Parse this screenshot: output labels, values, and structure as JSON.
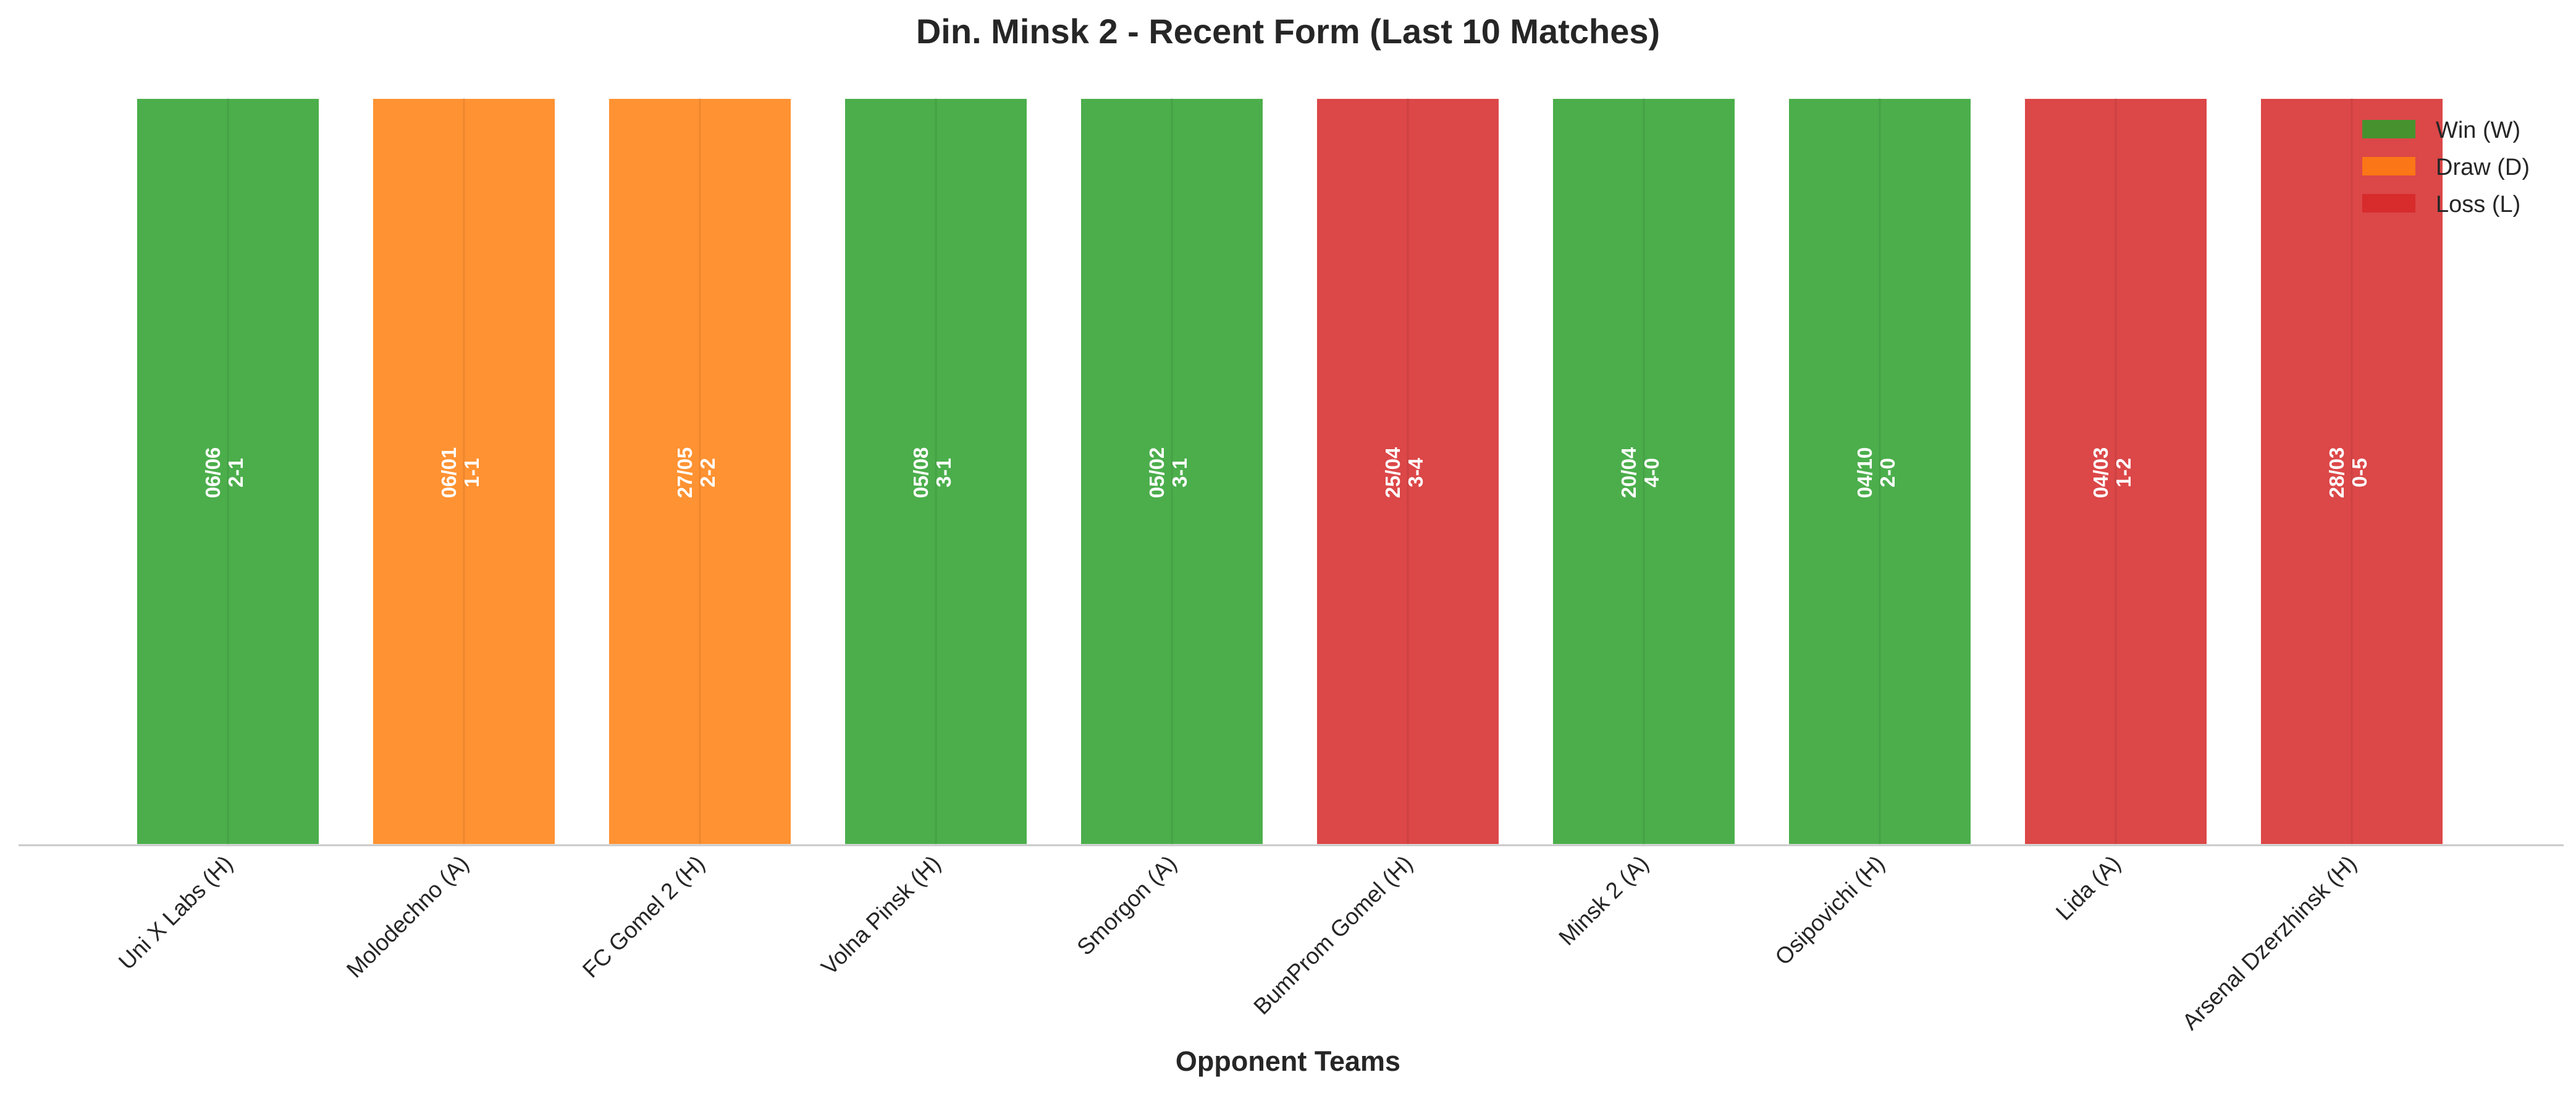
{
  "chart_data": {
    "type": "bar",
    "title": "Din. Minsk 2 - Recent Form (Last 10 Matches)",
    "xlabel": "Opponent Teams",
    "ylabel": "",
    "ylim": [
      0,
      1
    ],
    "grid": false,
    "legend_position": "top-right",
    "categories": [
      "Uni X Labs (H)",
      "Molodechno (A)",
      "FC Gomel 2 (H)",
      "Volna Pinsk (H)",
      "Smorgon (A)",
      "BumProm Gomel (H)",
      "Minsk 2 (A)",
      "Osipovichi (H)",
      "Lida (A)",
      "Arsenal Dzerzhinsk (H)"
    ],
    "values": [
      1,
      1,
      1,
      1,
      1,
      1,
      1,
      1,
      1,
      1
    ],
    "results": [
      "W",
      "D",
      "D",
      "W",
      "W",
      "L",
      "W",
      "W",
      "L",
      "L"
    ],
    "dates": [
      "06/06",
      "06/01",
      "27/05",
      "05/08",
      "05/02",
      "25/04",
      "20/04",
      "04/10",
      "04/03",
      "28/03"
    ],
    "scores": [
      "2-1",
      "1-1",
      "2-2",
      "3-1",
      "3-1",
      "3-4",
      "4-0",
      "2-0",
      "1-2",
      "0-5"
    ],
    "legend": [
      {
        "key": "W",
        "label": "Win (W)",
        "color": "#2ca02c"
      },
      {
        "key": "D",
        "label": "Draw (D)",
        "color": "#ff7f0e"
      },
      {
        "key": "L",
        "label": "Loss (L)",
        "color": "#d62728"
      }
    ]
  }
}
